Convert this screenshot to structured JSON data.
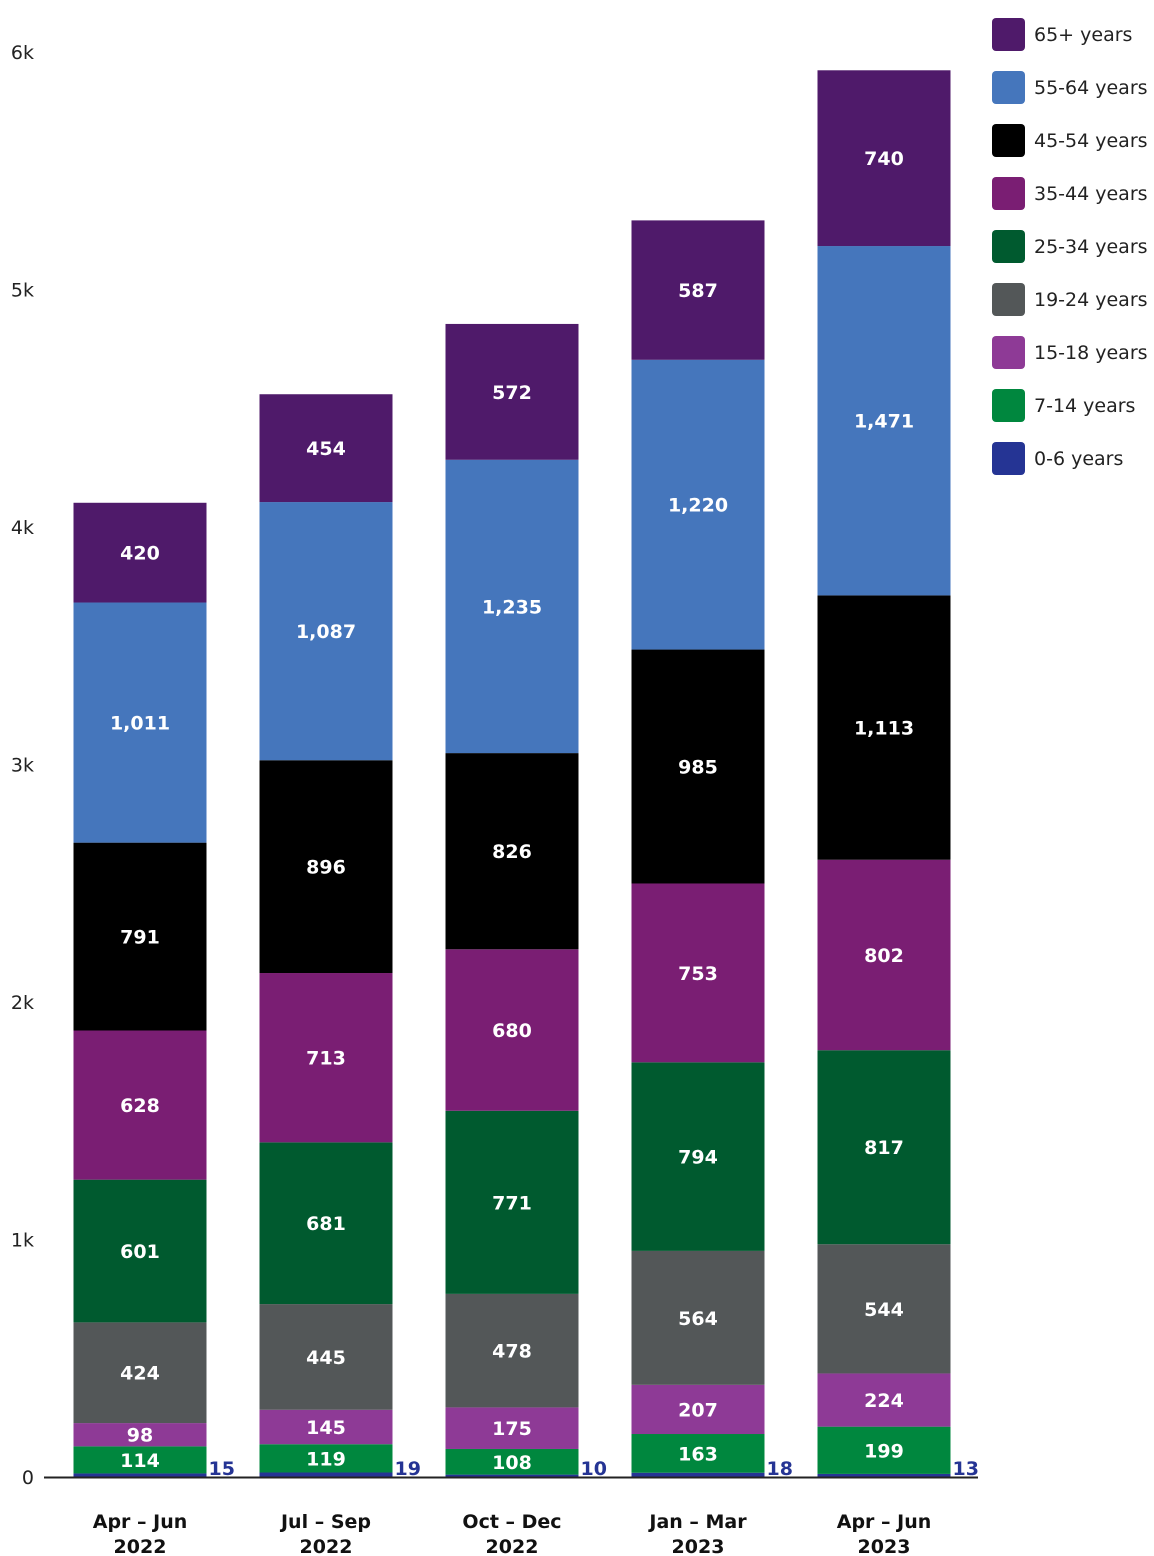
{
  "chart_data": {
    "type": "bar",
    "stacked": true,
    "categories": [
      [
        "Apr – Jun",
        "2022"
      ],
      [
        "Jul – Sep",
        "2022"
      ],
      [
        "Oct – Dec",
        "2022"
      ],
      [
        "Jan – Mar",
        "2023"
      ],
      [
        "Apr – Jun",
        "2023"
      ]
    ],
    "series": [
      {
        "name": "0-6 years",
        "color": "#253494",
        "values": [
          15,
          19,
          10,
          18,
          13
        ]
      },
      {
        "name": "7-14 years",
        "color": "#00873E",
        "values": [
          114,
          119,
          108,
          163,
          199
        ]
      },
      {
        "name": "15-18 years",
        "color": "#8E3A96",
        "values": [
          98,
          145,
          175,
          207,
          224
        ]
      },
      {
        "name": "19-24 years",
        "color": "#535758",
        "values": [
          424,
          445,
          478,
          564,
          544
        ]
      },
      {
        "name": "25-34 years",
        "color": "#005A2F",
        "values": [
          601,
          681,
          771,
          794,
          817
        ]
      },
      {
        "name": "35-44 years",
        "color": "#7A1E73",
        "values": [
          628,
          713,
          680,
          753,
          802
        ]
      },
      {
        "name": "45-54 years",
        "color": "#000000",
        "values": [
          791,
          896,
          826,
          985,
          1113
        ]
      },
      {
        "name": "55-64 years",
        "color": "#4576BC",
        "values": [
          1011,
          1087,
          1235,
          1220,
          1471
        ]
      },
      {
        "name": "65+ years",
        "color": "#4F1A6A",
        "values": [
          420,
          454,
          572,
          587,
          740
        ]
      }
    ],
    "value_labels": {
      "0-6 years": [
        "15",
        "19",
        "10",
        "18",
        "13"
      ],
      "7-14 years": [
        "114",
        "119",
        "108",
        "163",
        "199"
      ],
      "15-18 years": [
        "98",
        "145",
        "175",
        "207",
        "224"
      ],
      "19-24 years": [
        "424",
        "445",
        "478",
        "564",
        "544"
      ],
      "25-34 years": [
        "601",
        "681",
        "771",
        "794",
        "817"
      ],
      "35-44 years": [
        "628",
        "713",
        "680",
        "753",
        "802"
      ],
      "45-54 years": [
        "791",
        "896",
        "826",
        "985",
        "1,113"
      ],
      "55-64 years": [
        "1,011",
        "1,087",
        "1,235",
        "1,220",
        "1,471"
      ],
      "65+ years": [
        "420",
        "454",
        "572",
        "587",
        "740"
      ]
    },
    "y_ticks": [
      {
        "value": 0,
        "label": "0"
      },
      {
        "value": 1000,
        "label": "1k"
      },
      {
        "value": 2000,
        "label": "2k"
      },
      {
        "value": 3000,
        "label": "3k"
      },
      {
        "value": 4000,
        "label": "4k"
      },
      {
        "value": 5000,
        "label": "5k"
      },
      {
        "value": 6000,
        "label": "6k"
      }
    ],
    "ylim": [
      0,
      6000
    ],
    "grid": false,
    "legend_position": "top-right",
    "legend_order": [
      "65+ years",
      "55-64 years",
      "45-54 years",
      "35-44 years",
      "25-34 years",
      "19-24 years",
      "15-18 years",
      "7-14 years",
      "0-6 years"
    ],
    "title": "",
    "xlabel": "",
    "ylabel": "",
    "outside_label_color": "#253494",
    "axis_color": "#222222"
  }
}
